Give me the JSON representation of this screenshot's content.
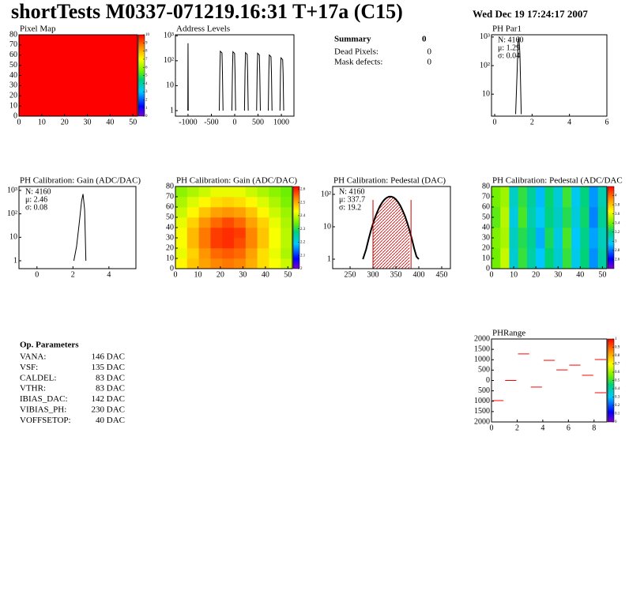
{
  "header": {
    "title": "shortTests M0337-071219.16:31 T+17a (C15)",
    "date": "Wed Dec 19 17:24:17 2007"
  },
  "summary": {
    "title": "Summary",
    "count": "0",
    "rows": [
      {
        "label": "Dead Pixels:",
        "value": "0"
      },
      {
        "label": "Mask defects:",
        "value": "0"
      }
    ]
  },
  "parameters": {
    "title": "Op. Parameters",
    "rows": [
      {
        "name": "VANA:",
        "value": "146 DAC"
      },
      {
        "name": "VSF:",
        "value": "135 DAC"
      },
      {
        "name": "CALDEL:",
        "value": "83 DAC"
      },
      {
        "name": "VTHR:",
        "value": "83 DAC"
      },
      {
        "name": "IBIAS_DAC:",
        "value": "142 DAC"
      },
      {
        "name": "VIBIAS_PH:",
        "value": "230 DAC"
      },
      {
        "name": "VOFFSETOP:",
        "value": "40 DAC"
      }
    ]
  },
  "chart_data": [
    {
      "type": "heatmap",
      "title": "Pixel Map",
      "xlim": [
        0,
        52
      ],
      "ylim": [
        0,
        80
      ],
      "xticks": [
        0,
        10,
        20,
        30,
        40,
        50
      ],
      "yticks": [
        0,
        10,
        20,
        30,
        40,
        50,
        60,
        70,
        80
      ],
      "zlim": [
        0,
        10
      ],
      "zticks": [
        0,
        1,
        2,
        3,
        4,
        5,
        6,
        7,
        8,
        9,
        10
      ],
      "values": [
        [
          10
        ]
      ]
    },
    {
      "type": "line",
      "title": "Address Levels",
      "log_y": true,
      "color": "#000000",
      "xlim": [
        -1270,
        1270
      ],
      "ylim": [
        0.6,
        1100
      ],
      "xticks": [
        -1000,
        -500,
        0,
        500,
        1000
      ],
      "yticks": [
        1,
        10,
        {
          "value": 100,
          "label": "10²"
        },
        {
          "value": 1000,
          "label": "10³"
        }
      ],
      "x": [
        -1005,
        -1000,
        -995,
        null,
        -330,
        -318,
        -308,
        -272,
        -262,
        -250,
        null,
        -60,
        -48,
        -38,
        -2,
        8,
        20,
        null,
        210,
        222,
        232,
        268,
        278,
        290,
        null,
        470,
        482,
        492,
        528,
        538,
        550,
        null,
        720,
        732,
        742,
        778,
        788,
        800,
        null,
        970,
        982,
        992,
        1028,
        1038,
        1050
      ],
      "values": [
        1,
        500,
        1,
        null,
        1,
        40,
        240,
        205,
        30,
        1,
        null,
        1,
        40,
        230,
        195,
        30,
        1,
        null,
        1,
        40,
        210,
        180,
        30,
        1,
        null,
        1,
        40,
        200,
        170,
        30,
        1,
        null,
        1,
        40,
        170,
        145,
        30,
        1,
        null,
        1,
        40,
        130,
        110,
        30,
        1
      ]
    },
    {
      "type": "line",
      "title": "PH Par1",
      "log_y": true,
      "color": "#000000",
      "xlim": [
        -0.17,
        6
      ],
      "ylim": [
        1.7,
        1200
      ],
      "xticks": [
        0,
        2,
        4,
        6
      ],
      "yticks": [
        10,
        {
          "value": 100,
          "label": "10²"
        },
        {
          "value": 1000,
          "label": "10³"
        }
      ],
      "stats": [
        "N: 4160",
        "μ: 1.29",
        "σ: 0.04"
      ],
      "x": [
        1.12,
        1.2,
        1.25,
        1.3,
        1.35,
        1.42
      ],
      "values": [
        2,
        60,
        700,
        1000,
        250,
        2
      ]
    },
    {
      "type": "line",
      "title": "PH Calibration: Gain (ADC/DAC)",
      "log_y": true,
      "color": "#000000",
      "xlim": [
        -1,
        5.5
      ],
      "ylim": [
        0.46,
        1470
      ],
      "xticks": [
        0,
        2,
        4
      ],
      "yticks": [
        1,
        10,
        {
          "value": 100,
          "label": "10²"
        },
        {
          "value": 1000,
          "label": "10³"
        }
      ],
      "stats": [
        "N: 4160",
        "μ: 2.46",
        "σ: 0.08"
      ],
      "x": [
        2.05,
        2.2,
        2.35,
        2.48,
        2.56,
        2.65,
        2.72
      ],
      "values": [
        1,
        4,
        40,
        350,
        700,
        150,
        1
      ]
    },
    {
      "type": "heatmap",
      "title": "PH Calibration: Gain (ADC/DAC)",
      "xlim": [
        0,
        52
      ],
      "ylim": [
        0,
        80
      ],
      "xticks": [
        0,
        10,
        20,
        30,
        40,
        50
      ],
      "yticks": [
        0,
        10,
        20,
        30,
        40,
        50,
        60,
        70,
        80
      ],
      "zlim": [
        2,
        2.62
      ],
      "zticks": [
        2,
        2.1,
        2.2,
        2.3,
        2.4,
        2.5,
        2.6
      ],
      "values": [
        [
          2.44,
          2.48,
          2.51,
          2.53,
          2.54,
          2.53,
          2.5,
          2.46,
          2.43,
          2.4
        ],
        [
          2.42,
          2.47,
          2.52,
          2.55,
          2.56,
          2.55,
          2.51,
          2.46,
          2.42,
          2.38
        ],
        [
          2.43,
          2.49,
          2.54,
          2.58,
          2.59,
          2.57,
          2.53,
          2.48,
          2.43,
          2.39
        ],
        [
          2.43,
          2.49,
          2.54,
          2.58,
          2.59,
          2.58,
          2.53,
          2.48,
          2.43,
          2.39
        ],
        [
          2.42,
          2.47,
          2.52,
          2.55,
          2.57,
          2.55,
          2.51,
          2.47,
          2.42,
          2.38
        ],
        [
          2.4,
          2.44,
          2.48,
          2.51,
          2.52,
          2.51,
          2.48,
          2.44,
          2.4,
          2.37
        ],
        [
          2.38,
          2.41,
          2.44,
          2.46,
          2.47,
          2.46,
          2.44,
          2.41,
          2.38,
          2.35
        ],
        [
          2.36,
          2.38,
          2.4,
          2.42,
          2.42,
          2.42,
          2.4,
          2.38,
          2.36,
          2.34
        ]
      ]
    },
    {
      "type": "line",
      "title": "PH Calibration: Pedestal (DAC)",
      "log_y": true,
      "color": "#000000",
      "xlim": [
        212,
        469
      ],
      "ylim": [
        0.51,
        175
      ],
      "xticks": [
        250,
        300,
        350,
        400,
        450
      ],
      "yticks": [
        1,
        10,
        {
          "value": 100,
          "label": "10²"
        }
      ],
      "stats": [
        "N: 4160",
        "μ: 337.7",
        "σ: 19.2"
      ],
      "stats_color": [
        "#000000",
        "#cc0000",
        "#cc0000"
      ],
      "fit_range": [
        300,
        383
      ],
      "fit_color": "#cc0000",
      "x": [
        278,
        285,
        290,
        295,
        300,
        305,
        310,
        315,
        320,
        325,
        330,
        335,
        340,
        345,
        350,
        355,
        360,
        365,
        370,
        375,
        380,
        385,
        390,
        395,
        400
      ],
      "values": [
        1,
        2,
        3.9,
        7.3,
        12.5,
        20,
        30,
        43,
        56,
        69,
        79,
        85,
        85,
        80,
        70,
        57,
        44,
        31,
        21,
        13,
        7.6,
        4.1,
        2.1,
        1.2,
        1
      ]
    },
    {
      "type": "heatmap",
      "title": "PH Calibration: Pedestal (ADC/DAC",
      "xlim": [
        0,
        52
      ],
      "ylim": [
        0,
        80
      ],
      "xticks": [
        0,
        10,
        20,
        30,
        40,
        50
      ],
      "yticks": [
        0,
        10,
        20,
        30,
        40,
        50,
        60,
        70,
        80
      ],
      "zlim": [
        2.4,
        4.2
      ],
      "zticks": [
        2.6,
        2.8,
        3,
        3.2,
        3.4,
        3.6,
        3.8,
        4
      ],
      "values": [
        [
          3.39,
          3.55,
          3.03,
          3.3,
          3.12,
          2.94,
          3.21,
          3.03,
          3.3,
          2.98,
          3.21,
          2.85,
          3.12
        ],
        [
          3.42,
          3.5,
          3.06,
          3.27,
          3.15,
          2.9,
          3.25,
          3.0,
          3.33,
          2.95,
          3.18,
          2.88,
          3.08
        ],
        [
          3.36,
          3.52,
          3.0,
          3.33,
          3.1,
          2.96,
          3.19,
          3.06,
          3.27,
          3.01,
          3.23,
          2.83,
          3.15
        ],
        [
          3.4,
          3.48,
          3.05,
          3.29,
          3.14,
          2.92,
          3.22,
          3.02,
          3.31,
          2.97,
          3.2,
          2.86,
          3.1
        ]
      ]
    },
    {
      "type": "segments",
      "title": "PHRange",
      "color": "#ff0000",
      "xlim": [
        0,
        9
      ],
      "ylim": [
        -2000,
        2000
      ],
      "xticks": [
        0,
        2,
        4,
        6,
        8
      ],
      "yticks": [
        {
          "value": -2000,
          "label": "2000"
        },
        {
          "value": -1500,
          "label": "1500"
        },
        {
          "value": -1000,
          "label": "1000"
        },
        {
          "value": -500,
          "label": "500"
        },
        0,
        500,
        1000,
        1500,
        2000
      ],
      "zlim": [
        0,
        1
      ],
      "zticks": [
        0,
        0.1,
        0.2,
        0.3,
        0.4,
        0.5,
        0.6,
        0.7,
        0.8,
        0.9,
        1
      ],
      "x": [
        0.5,
        1.5,
        2.5,
        3.5,
        4.5,
        5.5,
        6.5,
        7.5,
        8.5,
        8.5
      ],
      "values": [
        -970,
        0,
        1280,
        -320,
        970,
        510,
        740,
        250,
        1010,
        -590
      ]
    }
  ]
}
